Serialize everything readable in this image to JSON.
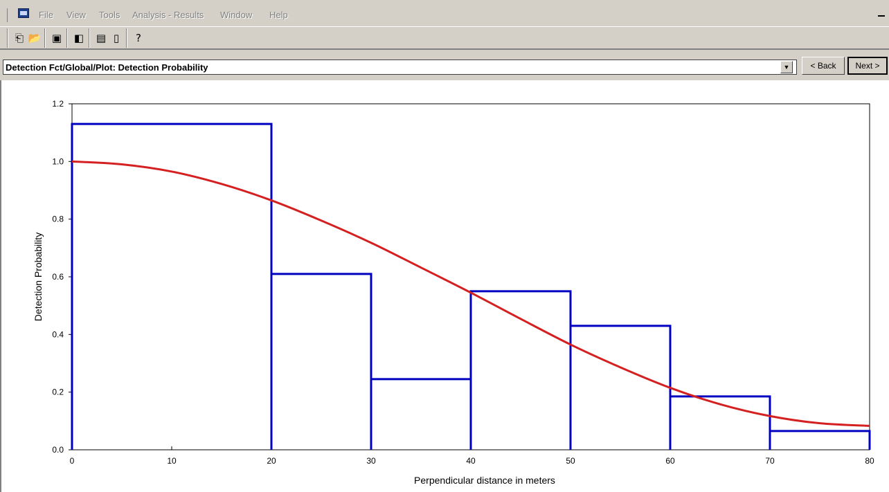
{
  "menu": {
    "items": [
      "File",
      "View",
      "Tools",
      "Analysis - Results",
      "Window",
      "Help"
    ]
  },
  "toolbar": {
    "icons": [
      "open-icon",
      "folder-open-icon",
      "save-icon",
      "briefcase-icon",
      "analysis-icon",
      "column-icon",
      "help-icon"
    ]
  },
  "nav": {
    "view_path": "Detection Fct/Global/Plot: Detection Probability",
    "back_label": "< Back",
    "next_label": "Next >"
  },
  "chart_data": {
    "type": "bar",
    "xlabel": "Perpendicular distance in meters",
    "ylabel": "Detection Probability",
    "xlim": [
      0,
      80
    ],
    "ylim": [
      0,
      1.2
    ],
    "x_ticks": [
      0,
      10,
      20,
      30,
      40,
      50,
      60,
      70,
      80
    ],
    "y_ticks": [
      "0.0",
      "0.2",
      "0.4",
      "0.6",
      "0.8",
      "1.0",
      "1.2"
    ],
    "bins": [
      {
        "from": 0,
        "to": 20,
        "value": 1.13
      },
      {
        "from": 20,
        "to": 30,
        "value": 0.61
      },
      {
        "from": 30,
        "to": 40,
        "value": 0.245
      },
      {
        "from": 40,
        "to": 50,
        "value": 0.55
      },
      {
        "from": 50,
        "to": 60,
        "value": 0.43
      },
      {
        "from": 60,
        "to": 70,
        "value": 0.185
      },
      {
        "from": 70,
        "to": 80,
        "value": 0.065
      }
    ],
    "curve": {
      "x": [
        0,
        5,
        10,
        15,
        20,
        25,
        30,
        35,
        40,
        45,
        50,
        55,
        60,
        65,
        70,
        75,
        80
      ],
      "y": [
        1.0,
        0.99,
        0.965,
        0.922,
        0.865,
        0.795,
        0.718,
        0.632,
        0.545,
        0.454,
        0.365,
        0.286,
        0.215,
        0.158,
        0.117,
        0.092,
        0.083
      ]
    },
    "bar_color": "#0000c0",
    "curve_color": "#d42020",
    "grid": false
  }
}
